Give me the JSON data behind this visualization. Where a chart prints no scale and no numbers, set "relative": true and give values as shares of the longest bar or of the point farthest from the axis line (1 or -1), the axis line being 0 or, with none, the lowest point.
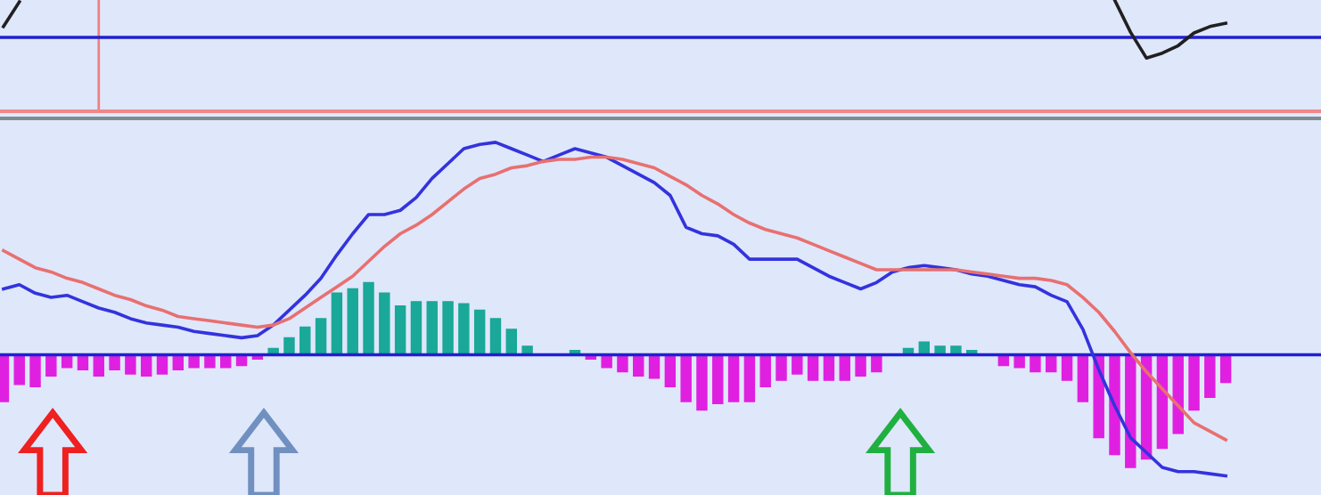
{
  "chart_data": [
    {
      "type": "line",
      "relative": true,
      "tick_labels": false,
      "legend": false,
      "ref_lines": [
        {
          "axis": "y",
          "value": 0,
          "color": "#2020d0"
        }
      ],
      "categories": [
        null,
        null,
        null,
        null,
        null,
        null,
        null,
        null,
        null,
        null,
        null,
        null,
        null,
        null,
        null,
        null,
        null,
        null,
        null,
        null,
        null,
        null,
        null,
        null,
        null,
        null,
        null,
        null,
        null,
        null,
        null,
        null,
        null,
        null,
        null,
        null,
        null,
        null,
        null,
        null,
        null,
        null,
        null,
        null,
        null,
        null,
        null,
        null,
        null,
        null,
        null,
        null,
        null,
        null,
        null,
        null,
        null,
        null,
        null,
        null,
        null,
        null,
        null,
        null,
        null,
        null,
        null,
        null,
        null,
        null,
        null,
        null,
        null,
        null,
        null,
        null,
        null,
        null
      ],
      "series": [
        {
          "color": "#202020",
          "values": [
            0.29,
            0.95,
            null,
            null,
            null,
            null,
            null,
            null,
            null,
            null,
            null,
            null,
            null,
            null,
            null,
            null,
            null,
            null,
            null,
            null,
            null,
            null,
            null,
            null,
            null,
            null,
            null,
            null,
            null,
            null,
            null,
            null,
            null,
            null,
            null,
            null,
            null,
            null,
            null,
            null,
            null,
            null,
            null,
            null,
            null,
            null,
            null,
            null,
            null,
            null,
            null,
            null,
            null,
            null,
            null,
            null,
            null,
            null,
            null,
            null,
            null,
            null,
            null,
            null,
            null,
            null,
            null,
            null,
            null,
            null,
            null,
            null,
            null,
            null,
            null,
            null,
            null,
            null
          ]
        },
        {
          "color": "#202020",
          "values": [
            null,
            null,
            null,
            null,
            null,
            null,
            null,
            null,
            null,
            null,
            null,
            null,
            null,
            null,
            null,
            null,
            null,
            null,
            null,
            null,
            null,
            null,
            null,
            null,
            null,
            null,
            null,
            null,
            null,
            null,
            null,
            null,
            null,
            null,
            null,
            null,
            null,
            null,
            null,
            null,
            null,
            null,
            null,
            null,
            null,
            null,
            null,
            null,
            null,
            null,
            null,
            null,
            null,
            null,
            null,
            null,
            null,
            null,
            null,
            null,
            null,
            null,
            null,
            null,
            null,
            null,
            null,
            null,
            null,
            null,
            1.0,
            0.14,
            -0.55,
            -0.42,
            -0.22,
            0.12,
            0.29,
            0.38
          ]
        }
      ]
    },
    {
      "type": "bar",
      "relative": true,
      "tick_labels": false,
      "legend": false,
      "ref_lines": [
        {
          "axis": "y",
          "value": 0,
          "color": "#2020d0"
        }
      ],
      "categories": [
        null,
        null,
        null,
        null,
        null,
        null,
        null,
        null,
        null,
        null,
        null,
        null,
        null,
        null,
        null,
        null,
        null,
        null,
        null,
        null,
        null,
        null,
        null,
        null,
        null,
        null,
        null,
        null,
        null,
        null,
        null,
        null,
        null,
        null,
        null,
        null,
        null,
        null,
        null,
        null,
        null,
        null,
        null,
        null,
        null,
        null,
        null,
        null,
        null,
        null,
        null,
        null,
        null,
        null,
        null,
        null,
        null,
        null,
        null,
        null,
        null,
        null,
        null,
        null,
        null,
        null,
        null,
        null,
        null,
        null,
        null,
        null,
        null,
        null,
        null,
        null,
        null,
        null
      ],
      "series": [
        {
          "values": [
            -0.22,
            -0.14,
            -0.15,
            -0.1,
            -0.06,
            -0.07,
            -0.1,
            -0.07,
            -0.09,
            -0.1,
            -0.09,
            -0.07,
            -0.06,
            -0.06,
            -0.06,
            -0.05,
            -0.02,
            0.03,
            0.08,
            0.13,
            0.17,
            0.29,
            0.31,
            0.34,
            0.29,
            0.23,
            0.25,
            0.25,
            0.25,
            0.24,
            0.21,
            0.17,
            0.12,
            0.04,
            0,
            0,
            0.02,
            -0.02,
            -0.06,
            -0.08,
            -0.1,
            -0.11,
            -0.15,
            -0.22,
            -0.26,
            -0.23,
            -0.22,
            -0.22,
            -0.15,
            -0.12,
            -0.09,
            -0.12,
            -0.12,
            -0.12,
            -0.1,
            -0.08,
            0,
            0.03,
            0.06,
            0.04,
            0.04,
            0.02,
            0,
            -0.05,
            -0.06,
            -0.08,
            -0.08,
            -0.12,
            -0.22,
            -0.39,
            -0.47,
            -0.53,
            -0.49,
            -0.44,
            -0.37,
            -0.26,
            -0.2,
            -0.13
          ],
          "colors": [
            "#e020e0",
            "#e020e0",
            "#e020e0",
            "#e020e0",
            "#e020e0",
            "#e020e0",
            "#e020e0",
            "#e020e0",
            "#e020e0",
            "#e020e0",
            "#e020e0",
            "#e020e0",
            "#e020e0",
            "#e020e0",
            "#e020e0",
            "#e020e0",
            "#e020e0",
            "#1aa898",
            "#1aa898",
            "#1aa898",
            "#1aa898",
            "#1aa898",
            "#1aa898",
            "#1aa898",
            "#1aa898",
            "#1aa898",
            "#1aa898",
            "#1aa898",
            "#1aa898",
            "#1aa898",
            "#1aa898",
            "#1aa898",
            "#1aa898",
            "#1aa898",
            "#1aa898",
            "#1aa898",
            "#1aa898",
            "#e020e0",
            "#e020e0",
            "#e020e0",
            "#e020e0",
            "#e020e0",
            "#e020e0",
            "#e020e0",
            "#e020e0",
            "#e020e0",
            "#e020e0",
            "#e020e0",
            "#e020e0",
            "#e020e0",
            "#e020e0",
            "#e020e0",
            "#e020e0",
            "#e020e0",
            "#e020e0",
            "#e020e0",
            "#1aa898",
            "#1aa898",
            "#1aa898",
            "#1aa898",
            "#1aa898",
            "#1aa898",
            "#e020e0",
            "#e020e0",
            "#e020e0",
            "#e020e0",
            "#e020e0",
            "#e020e0",
            "#e020e0",
            "#e020e0",
            "#e020e0",
            "#e020e0",
            "#e020e0",
            "#e020e0",
            "#e020e0",
            "#e020e0",
            "#e020e0",
            "#e020e0"
          ]
        },
        {
          "type": "line",
          "color": "#3333dd",
          "values": [
            0.31,
            0.33,
            0.29,
            0.27,
            0.28,
            0.25,
            0.22,
            0.2,
            0.17,
            0.15,
            0.14,
            0.13,
            0.11,
            0.1,
            0.09,
            0.08,
            0.09,
            0.14,
            0.21,
            0.28,
            0.36,
            0.47,
            0.57,
            0.66,
            0.66,
            0.68,
            0.74,
            0.83,
            0.9,
            0.97,
            0.99,
            1.0,
            0.97,
            0.94,
            0.91,
            0.94,
            0.97,
            0.95,
            0.93,
            0.89,
            0.85,
            0.81,
            0.75,
            0.6,
            0.57,
            0.56,
            0.52,
            0.45,
            0.45,
            0.45,
            0.45,
            0.41,
            0.37,
            0.34,
            0.31,
            0.34,
            0.39,
            0.41,
            0.42,
            0.41,
            0.4,
            0.38,
            0.37,
            0.35,
            0.33,
            0.32,
            0.28,
            0.25,
            0.12,
            -0.07,
            -0.24,
            -0.39,
            -0.46,
            -0.53,
            -0.55,
            -0.55,
            -0.56,
            -0.57
          ]
        },
        {
          "type": "line",
          "color": "#e87070",
          "values": [
            0.49,
            0.45,
            0.41,
            0.39,
            0.36,
            0.34,
            0.31,
            0.28,
            0.26,
            0.23,
            0.21,
            0.18,
            0.17,
            0.16,
            0.15,
            0.14,
            0.13,
            0.14,
            0.17,
            0.22,
            0.27,
            0.32,
            0.37,
            0.44,
            0.51,
            0.57,
            0.61,
            0.66,
            0.72,
            0.78,
            0.83,
            0.85,
            0.88,
            0.89,
            0.91,
            0.92,
            0.92,
            0.93,
            0.93,
            0.92,
            0.9,
            0.88,
            0.84,
            0.8,
            0.75,
            0.71,
            0.66,
            0.62,
            0.59,
            0.57,
            0.55,
            0.52,
            0.49,
            0.46,
            0.43,
            0.4,
            0.4,
            0.4,
            0.4,
            0.4,
            0.4,
            0.39,
            0.38,
            0.37,
            0.36,
            0.36,
            0.35,
            0.33,
            0.27,
            0.2,
            0.11,
            0.01,
            -0.08,
            -0.16,
            -0.24,
            -0.32,
            -0.36,
            -0.4
          ]
        }
      ]
    }
  ]
}
